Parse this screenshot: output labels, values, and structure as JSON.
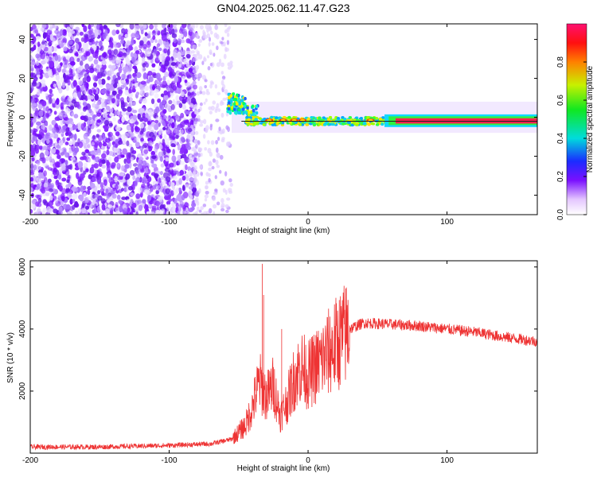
{
  "title": "GN04.2025.062.11.47.G23",
  "colors": {
    "snr_line": "#ee3333",
    "center_line": "#202020",
    "background": "#ffffff",
    "frame": "#000000"
  },
  "chart_data": [
    {
      "type": "heatmap",
      "xlabel": "Height of straight line (km)",
      "ylabel": "Frequency (Hz)",
      "xlim": [
        -200,
        165
      ],
      "ylim": [
        -50,
        48
      ],
      "xticks": [
        "-200",
        "-100",
        "0",
        "100"
      ],
      "yticks": [
        "40",
        "20",
        "0",
        "-20",
        "-40"
      ],
      "colorbar": {
        "label": "Normalized spectral amplitude",
        "range": [
          0.0,
          1.0
        ],
        "ticks": [
          "0.0",
          "0.2",
          "0.4",
          "0.6",
          "0.8"
        ],
        "colormap": "white-violet-blue-cyan-green-yellow-red-magenta",
        "placement": "right"
      },
      "description_regions": [
        {
          "x_range": [
            -200,
            -85
          ],
          "freq_range": [
            -50,
            48
          ],
          "amplitude": 0.1
        },
        {
          "x_range": [
            -85,
            -60
          ],
          "freq_range": [
            -50,
            48
          ],
          "amplitude": 0.05
        },
        {
          "x_range": [
            -60,
            -40
          ],
          "freq_center": 6,
          "amplitude": 0.4
        },
        {
          "x_range": [
            -40,
            60
          ],
          "freq_center": -2,
          "amplitude": 0.45
        },
        {
          "x_range": [
            60,
            165
          ],
          "freq_center": -2,
          "amplitude": 0.95
        }
      ],
      "grid": false
    },
    {
      "type": "line",
      "xlabel": "Height of straight line (km)",
      "ylabel": "SNR (10 * v/v)",
      "xlim": [
        -200,
        165
      ],
      "ylim": [
        0,
        6200
      ],
      "xticks": [
        "-200",
        "-100",
        "0",
        "100"
      ],
      "yticks": [
        "6000",
        "4000",
        "2000"
      ],
      "series": [
        {
          "x": [
            -200,
            -150,
            -100,
            -70,
            -55,
            -45,
            -40,
            -35,
            -30,
            -25,
            -20,
            -15,
            -10,
            -5,
            0,
            10,
            20,
            30,
            40,
            60,
            80,
            100,
            120,
            140,
            165
          ],
          "y": [
            200,
            200,
            250,
            300,
            450,
            900,
            1500,
            2300,
            1800,
            2200,
            1200,
            1700,
            2400,
            2800,
            2500,
            3000,
            3500,
            4000,
            4200,
            4150,
            4100,
            4000,
            3900,
            3750,
            3600
          ]
        }
      ],
      "spikes": [
        {
          "x": -33,
          "y": 6100
        },
        {
          "x": -32,
          "y": 5100
        },
        {
          "x": -19,
          "y": 4000
        }
      ],
      "grid": false
    }
  ]
}
